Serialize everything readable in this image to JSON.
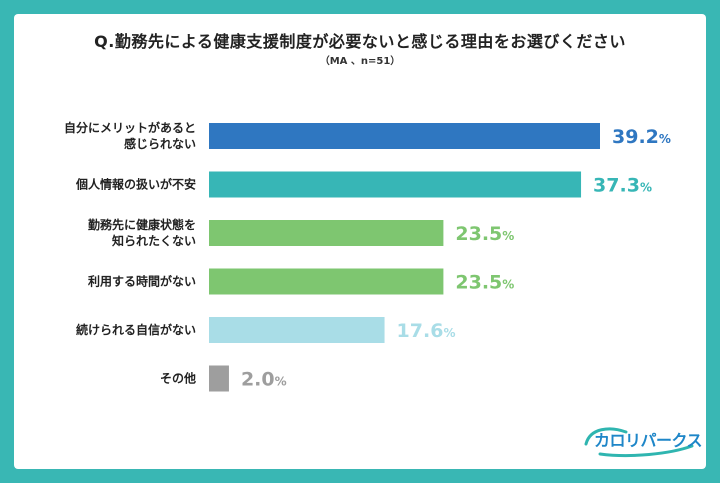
{
  "title": "Q.勤務先による健康支援制度が必要ないと感じる理由をお選びください",
  "subtitle": "（MA 、n=51）",
  "logo": {
    "text": "カロリパークス",
    "color": "#1e86c8"
  },
  "pct_symbol": "%",
  "chart_data": {
    "type": "bar",
    "orientation": "horizontal",
    "categories": [
      [
        "自分にメリットがあると",
        "感じられない"
      ],
      [
        "個人情報の扱いが不安"
      ],
      [
        "勤務先に健康状態を",
        "知られたくない"
      ],
      [
        "利用する時間がない"
      ],
      [
        "続けられる自信がない"
      ],
      [
        "その他"
      ]
    ],
    "values": [
      39.2,
      37.3,
      23.5,
      23.5,
      17.6,
      2.0
    ],
    "value_labels": [
      "39.2",
      "37.3",
      "23.5",
      "23.5",
      "17.6",
      "2.0"
    ],
    "colors": [
      "#2f77c1",
      "#37b6b6",
      "#7ec670",
      "#7ec670",
      "#a9dde7",
      "#9e9e9e"
    ],
    "xlim": [
      0,
      45
    ],
    "grid": false,
    "legend": "none"
  }
}
